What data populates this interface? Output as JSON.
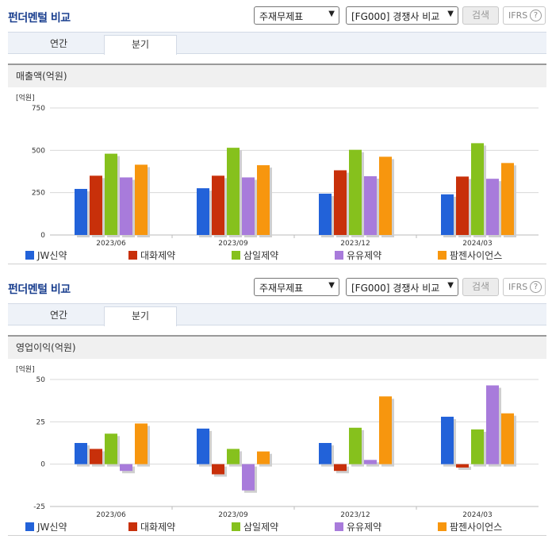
{
  "header": {
    "title": "펀더멘털 비교",
    "select_statement": "주재무제표",
    "select_compare": "[FG000] 경쟁사 비교",
    "search_label": "검색",
    "ifrs_label": "IFRS",
    "help_glyph": "?"
  },
  "tabs": [
    {
      "label": "연간",
      "active": false
    },
    {
      "label": "분기",
      "active": true
    }
  ],
  "legend_colors": [
    "#2262d9",
    "#c8300a",
    "#86c11d",
    "#a87bdb",
    "#f7960e"
  ],
  "chart_data": [
    {
      "type": "bar",
      "title": "매출액(억원)",
      "unit_label": "[억원]",
      "categories": [
        "2023/06",
        "2023/09",
        "2023/12",
        "2024/03"
      ],
      "ylim": [
        0,
        750
      ],
      "yticks": [
        0,
        250,
        500,
        750
      ],
      "grid": true,
      "legend_position": "bottom",
      "series": [
        {
          "name": "JW신약",
          "color": "#2262d9",
          "values": [
            272,
            276,
            244,
            240
          ]
        },
        {
          "name": "대화제약",
          "color": "#c8300a",
          "values": [
            350,
            350,
            382,
            345
          ]
        },
        {
          "name": "삼일제약",
          "color": "#86c11d",
          "values": [
            480,
            515,
            503,
            542
          ]
        },
        {
          "name": "유유제약",
          "color": "#a87bdb",
          "values": [
            340,
            340,
            347,
            332
          ]
        },
        {
          "name": "팜젠사이언스",
          "color": "#f7960e",
          "values": [
            415,
            412,
            462,
            425
          ]
        }
      ]
    },
    {
      "type": "bar",
      "title": "영업이익(억원)",
      "unit_label": "[억원]",
      "categories": [
        "2023/06",
        "2023/09",
        "2023/12",
        "2024/03"
      ],
      "ylim": [
        -25,
        50
      ],
      "yticks": [
        -25,
        0,
        25,
        50
      ],
      "grid": true,
      "legend_position": "bottom",
      "series": [
        {
          "name": "JW신약",
          "color": "#2262d9",
          "values": [
            12.5,
            21,
            12.5,
            28
          ]
        },
        {
          "name": "대화제약",
          "color": "#c8300a",
          "values": [
            9,
            -6,
            -4,
            -2
          ]
        },
        {
          "name": "삼일제약",
          "color": "#86c11d",
          "values": [
            18,
            9,
            21.5,
            20.5
          ]
        },
        {
          "name": "유유제약",
          "color": "#a87bdb",
          "values": [
            -4,
            -15.5,
            2.5,
            46.5
          ]
        },
        {
          "name": "팜젠사이언스",
          "color": "#f7960e",
          "values": [
            24,
            7.5,
            40,
            30
          ]
        }
      ]
    }
  ]
}
